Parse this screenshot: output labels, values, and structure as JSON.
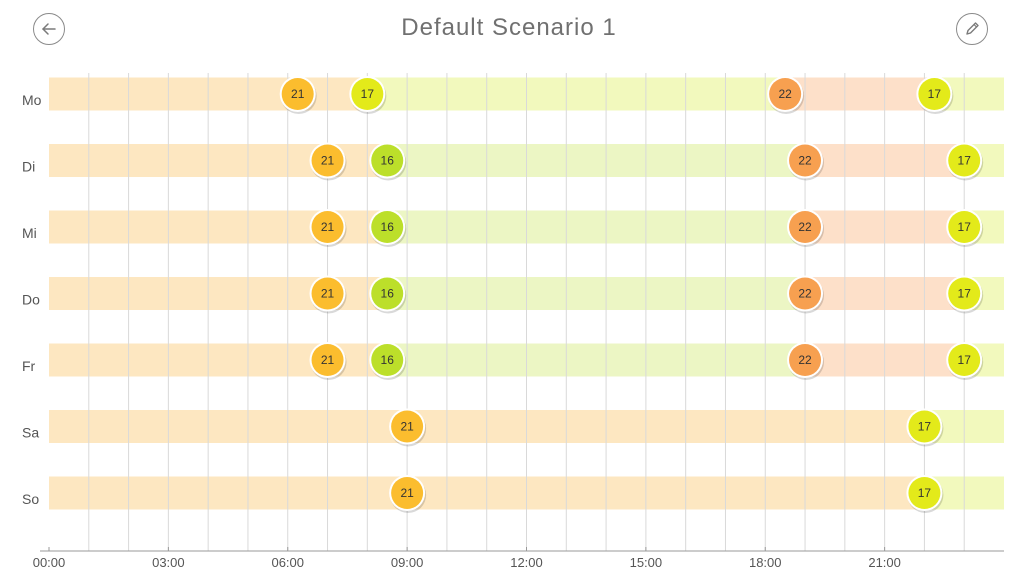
{
  "header": {
    "title": "Default  Scenario  1",
    "back_icon": "arrow-left-icon",
    "edit_icon": "pencil-icon"
  },
  "colors": {
    "c21": "#fbbd2e",
    "c22": "#f7a050",
    "c17": "#e3ea1a",
    "c16": "#bcdf2a",
    "band21": "#fde7c1",
    "band22": "#fde0c9",
    "band17": "#f2f9bd",
    "band16": "#ecf6c4"
  },
  "chart_data": {
    "type": "table",
    "x_range_hours": [
      0,
      24
    ],
    "x_ticks": [
      "00:00",
      "03:00",
      "06:00",
      "09:00",
      "12:00",
      "15:00",
      "18:00",
      "21:00"
    ],
    "days": [
      {
        "label": "Mo",
        "start_temp": 21,
        "switches": [
          {
            "hour": 6.25,
            "temp": 21
          },
          {
            "hour": 8.0,
            "temp": 17
          },
          {
            "hour": 18.5,
            "temp": 22
          },
          {
            "hour": 22.25,
            "temp": 17
          }
        ]
      },
      {
        "label": "Di",
        "start_temp": 21,
        "switches": [
          {
            "hour": 7.0,
            "temp": 21
          },
          {
            "hour": 8.5,
            "temp": 16
          },
          {
            "hour": 19.0,
            "temp": 22
          },
          {
            "hour": 23.0,
            "temp": 17
          }
        ]
      },
      {
        "label": "Mi",
        "start_temp": 21,
        "switches": [
          {
            "hour": 7.0,
            "temp": 21
          },
          {
            "hour": 8.5,
            "temp": 16
          },
          {
            "hour": 19.0,
            "temp": 22
          },
          {
            "hour": 23.0,
            "temp": 17
          }
        ]
      },
      {
        "label": "Do",
        "start_temp": 21,
        "switches": [
          {
            "hour": 7.0,
            "temp": 21
          },
          {
            "hour": 8.5,
            "temp": 16
          },
          {
            "hour": 19.0,
            "temp": 22
          },
          {
            "hour": 23.0,
            "temp": 17
          }
        ]
      },
      {
        "label": "Fr",
        "start_temp": 21,
        "switches": [
          {
            "hour": 7.0,
            "temp": 21
          },
          {
            "hour": 8.5,
            "temp": 16
          },
          {
            "hour": 19.0,
            "temp": 22
          },
          {
            "hour": 23.0,
            "temp": 17
          }
        ]
      },
      {
        "label": "Sa",
        "start_temp": 21,
        "switches": [
          {
            "hour": 9.0,
            "temp": 21
          },
          {
            "hour": 22.0,
            "temp": 17
          }
        ]
      },
      {
        "label": "So",
        "start_temp": 21,
        "switches": [
          {
            "hour": 9.0,
            "temp": 21
          },
          {
            "hour": 22.0,
            "temp": 17
          }
        ]
      }
    ]
  }
}
